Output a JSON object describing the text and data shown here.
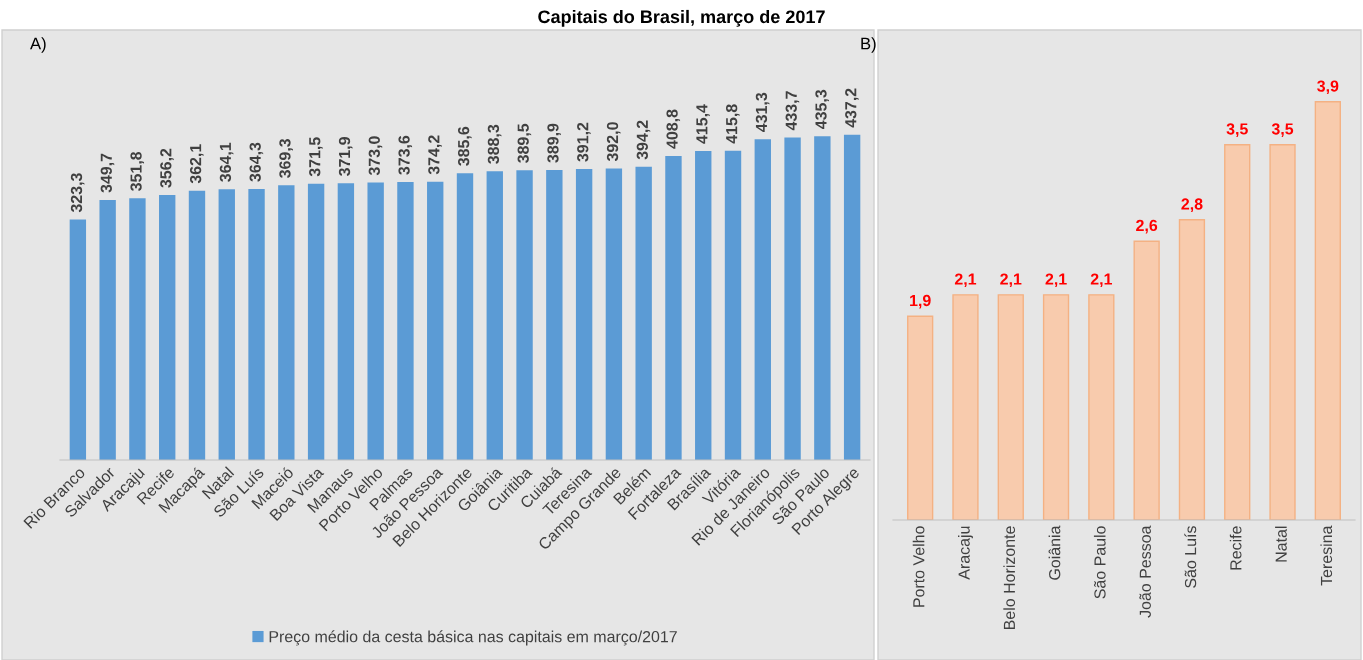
{
  "chart_data": [
    {
      "type": "bar",
      "title": "Capitais do Brasil, março de 2017",
      "annotations": [
        "A)"
      ],
      "categories": [
        "Rio Branco",
        "Salvador",
        "Aracaju",
        "Recife",
        "Macapá",
        "Natal",
        "São Luís",
        "Maceió",
        "Boa Vista",
        "Manaus",
        "Porto Velho",
        "Palmas",
        "João Pessoa",
        "Belo Horizonte",
        "Goiânia",
        "Curitiba",
        "Cuiabá",
        "Teresina",
        "Campo Grande",
        "Belém",
        "Fortaleza",
        "Brasília",
        "Vitória",
        "Rio de Janeiro",
        "Florianópolis",
        "São Paulo",
        "Porto Alegre"
      ],
      "series": [
        {
          "name": "Preço médio da cesta básica nas capitais em março/2017",
          "color": "#5b9bd5",
          "values": [
            323.3,
            349.7,
            351.8,
            356.2,
            362.1,
            364.1,
            364.3,
            369.3,
            371.5,
            371.9,
            373.0,
            373.6,
            374.2,
            385.6,
            388.3,
            389.5,
            389.9,
            391.2,
            392.0,
            394.2,
            408.8,
            415.4,
            415.8,
            431.3,
            433.7,
            435.3,
            437.2
          ],
          "value_labels": [
            "323,3",
            "349,7",
            "351,8",
            "356,2",
            "362,1",
            "364,1",
            "364,3",
            "369,3",
            "371,5",
            "371,9",
            "373,0",
            "373,6",
            "374,2",
            "385,6",
            "388,3",
            "389,5",
            "389,9",
            "391,2",
            "392,0",
            "394,2",
            "408,8",
            "415,4",
            "415,8",
            "431,3",
            "433,7",
            "435,3",
            "437,2"
          ]
        }
      ],
      "legend": "bottom"
    },
    {
      "type": "bar",
      "annotations": [
        "B)"
      ],
      "categories": [
        "Porto Velho",
        "Aracaju",
        "Belo Horizonte",
        "Goiânia",
        "São Paulo",
        "João Pessoa",
        "São Luís",
        "Recife",
        "Natal",
        "Teresina"
      ],
      "series": [
        {
          "color": "#f8cbad",
          "values": [
            1.9,
            2.1,
            2.1,
            2.1,
            2.1,
            2.6,
            2.8,
            3.5,
            3.5,
            3.9
          ],
          "value_labels": [
            "1,9",
            "2,1",
            "2,1",
            "2,1",
            "2,1",
            "2,6",
            "2,8",
            "3,5",
            "3,5",
            "3,9"
          ]
        }
      ]
    }
  ]
}
